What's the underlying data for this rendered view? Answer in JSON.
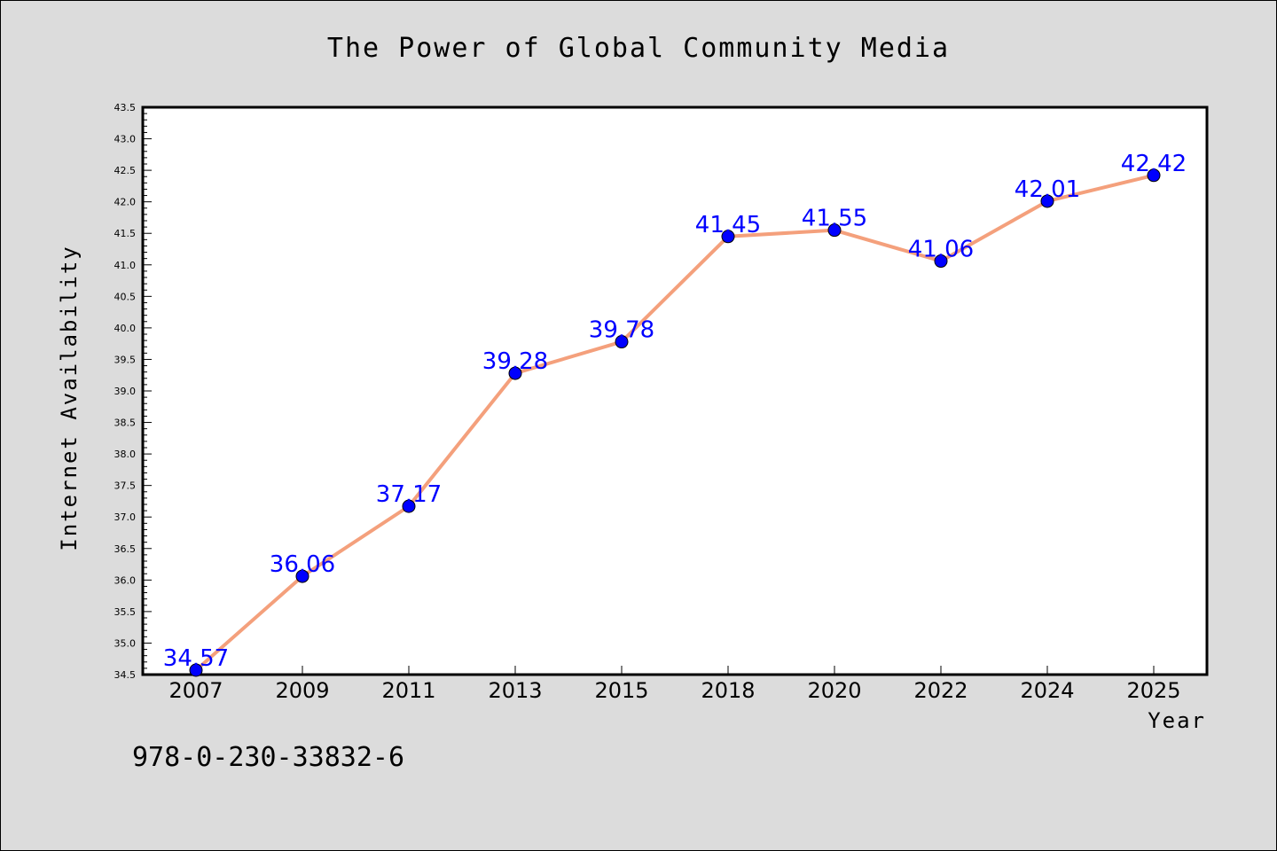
{
  "chart_data": {
    "type": "line",
    "title": "The Power of Global Community Media",
    "xlabel": "Year",
    "ylabel": "Internet Availability",
    "categories": [
      "2007",
      "2009",
      "2011",
      "2013",
      "2015",
      "2018",
      "2020",
      "2022",
      "2024",
      "2025"
    ],
    "series": [
      {
        "values": [
          34.57,
          36.06,
          37.17,
          39.28,
          39.78,
          41.45,
          41.55,
          41.06,
          42.01,
          42.42
        ],
        "data_labels": [
          "34.57",
          "36.06",
          "37.17",
          "39.28",
          "39.78",
          "41.45",
          "41.55",
          "41.06",
          "42.01",
          "42.42"
        ]
      }
    ],
    "ylim": [
      34.5,
      43.5
    ],
    "y_ticks": [
      "34.5",
      "35.0",
      "35.5",
      "36.0",
      "36.5",
      "37.0",
      "37.5",
      "38.0",
      "38.5",
      "39.0",
      "39.5",
      "40.0",
      "40.5",
      "41.0",
      "41.5",
      "42.0",
      "42.5",
      "43.0",
      "43.5"
    ],
    "grid": false,
    "legend": "none",
    "colors": {
      "line": "#f4a07c",
      "marker": "#0000ff",
      "data_label": "#0000ff",
      "figure_background": "#dcdcdc",
      "plot_background": "#ffffff"
    }
  },
  "annotation": "978-0-230-33832-6"
}
